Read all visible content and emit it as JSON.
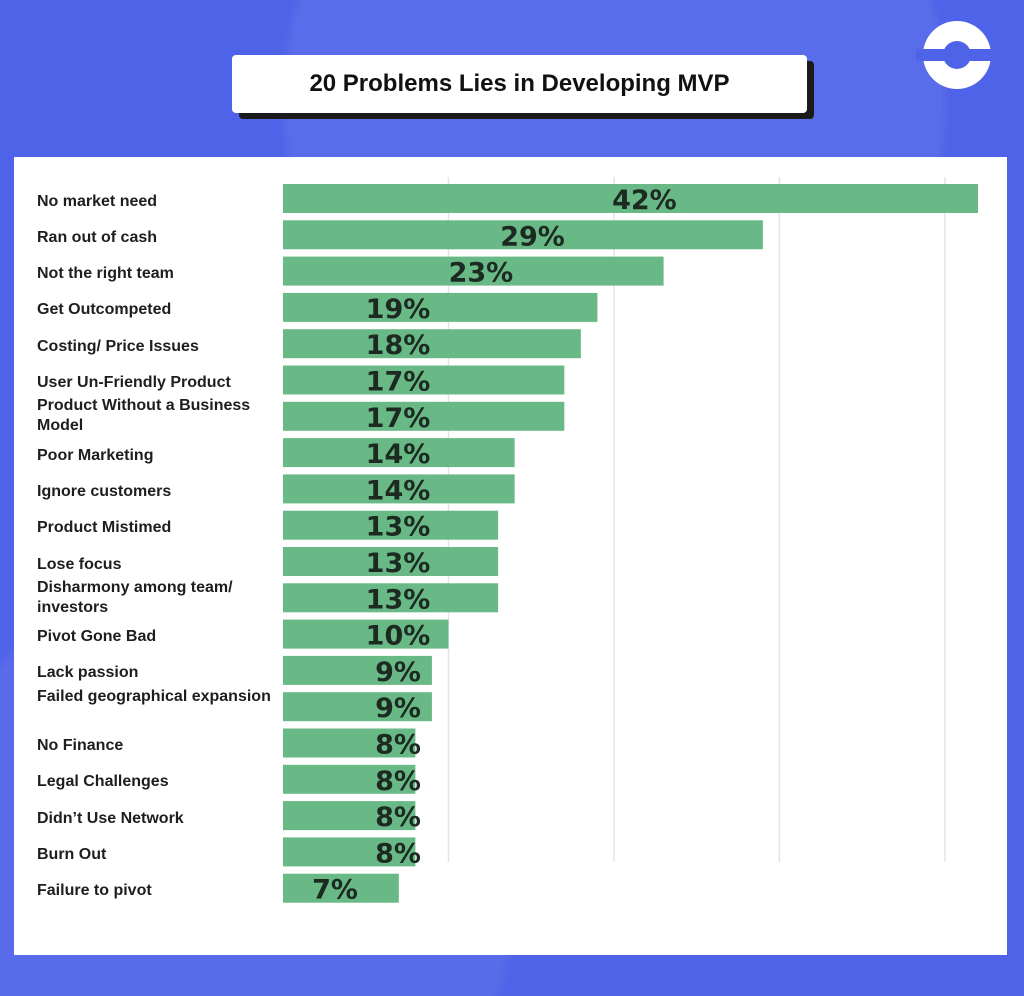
{
  "title": "20 Problems Lies in Developing MVP",
  "logo_icon": "circle-ring-logo-icon",
  "colors": {
    "frame": "#4f63e8",
    "bar": "#69b986",
    "bar_text": "#1c2a22",
    "grid": "#e4e4e4"
  },
  "chart_data": {
    "type": "bar",
    "orientation": "horizontal",
    "title": "20 Problems Lies in Developing MVP",
    "xlabel": "",
    "ylabel": "",
    "xlim": [
      0,
      42
    ],
    "grid": true,
    "value_suffix": "%",
    "categories": [
      "No market need",
      "Ran out of cash",
      "Not the right team",
      "Get Outcompeted",
      "Costing/ Price Issues",
      "User Un-Friendly Product",
      "Product Without a Business Model",
      "Poor Marketing",
      "Ignore customers",
      "Product Mistimed",
      "Lose focus",
      "Disharmony among team/ investors",
      "Pivot Gone Bad",
      "Lack passion",
      "Failed geographical expansion",
      "No Finance",
      "Legal Challenges",
      "Didn’t Use Network",
      "Burn Out",
      "Failure to pivot"
    ],
    "values": [
      42,
      29,
      23,
      19,
      18,
      17,
      17,
      14,
      14,
      13,
      13,
      13,
      10,
      9,
      9,
      8,
      8,
      8,
      8,
      7
    ],
    "labels": [
      "42%",
      "29%",
      "23%",
      "19%",
      "18%",
      "17%",
      "17%",
      "14%",
      "14%",
      "13%",
      "13%",
      "13%",
      "10%",
      "9%",
      "9%",
      "8%",
      "8%",
      "8%",
      "8%",
      "7%"
    ]
  }
}
